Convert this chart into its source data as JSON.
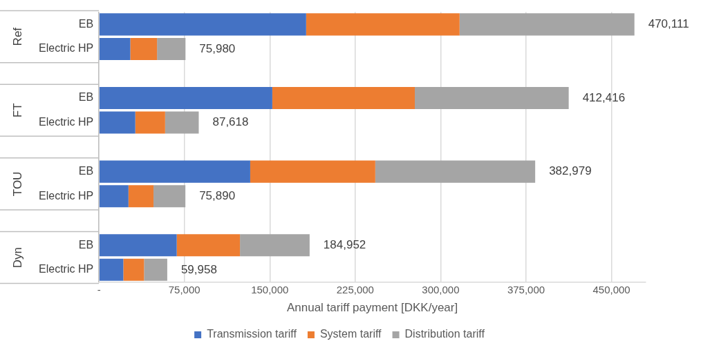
{
  "chart_data": {
    "type": "bar",
    "orientation": "horizontal",
    "stacked": true,
    "xlabel": "Annual tariff payment [DKK/year]",
    "categories": [
      "EB",
      "Electric HP",
      null,
      "EB",
      "Electric HP",
      null,
      "EB",
      "Electric HP",
      null,
      "EB",
      "Electric HP"
    ],
    "series": [
      {
        "name": "Transmission tariff",
        "color": "#4472c4",
        "values": [
          181900,
          27500,
          null,
          152200,
          31900,
          null,
          132800,
          25900,
          null,
          68300,
          21400
        ]
      },
      {
        "name": "System tariff",
        "color": "#ed7d31",
        "values": [
          134700,
          23500,
          null,
          125100,
          26200,
          null,
          109800,
          22000,
          null,
          55500,
          18200
        ]
      },
      {
        "name": "Distribution tariff",
        "color": "#a5a5a5",
        "values": [
          153511,
          24980,
          null,
          135116,
          29518,
          null,
          140379,
          27990,
          null,
          61152,
          20358
        ]
      }
    ],
    "totals": [
      "470,111",
      "75,980",
      null,
      "412,416",
      "87,618",
      null,
      "382,979",
      "75,890",
      null,
      "184,952",
      "59,958"
    ],
    "annotations": [
      "Ref",
      "FT",
      "TOU",
      "Dyn"
    ],
    "xlim": [
      0,
      480000
    ],
    "xticks": [
      {
        "value": 0,
        "label": "-"
      },
      {
        "value": 75000,
        "label": "75,000"
      },
      {
        "value": 150000,
        "label": "150,000"
      },
      {
        "value": 225000,
        "label": "225,000"
      },
      {
        "value": 300000,
        "label": "300,000"
      },
      {
        "value": 375000,
        "label": "375,000"
      },
      {
        "value": 450000,
        "label": "450,000"
      }
    ],
    "grid": "x",
    "legend": "bottom"
  }
}
